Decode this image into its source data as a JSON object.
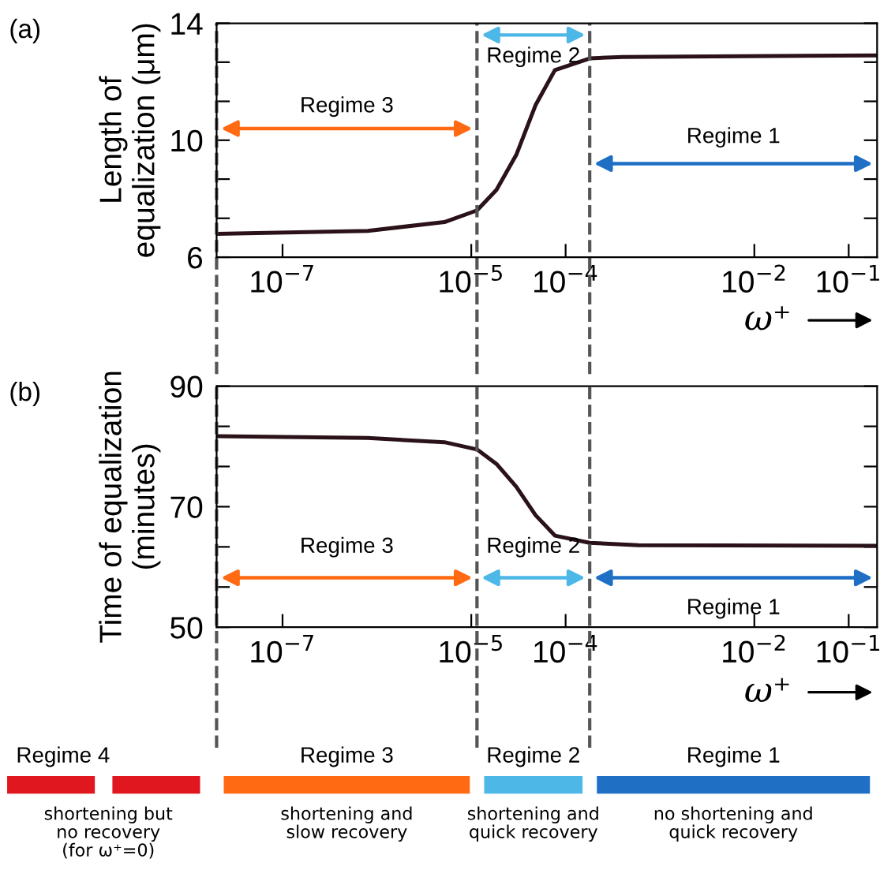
{
  "chart_data": [
    {
      "type": "line",
      "title": "(a)",
      "ylabel": "Length of\nequalization (μm)",
      "xlabel": "ω⁺",
      "log": "x",
      "x": [
        2e-08,
        8e-07,
        5.2e-06,
        1.15e-05,
        1.85e-05,
        3e-05,
        4.8e-05,
        7.7e-05,
        0.00018,
        0.0004,
        0.2
      ],
      "series": [
        {
          "color": "#2a1218",
          "values": [
            6.8,
            6.9,
            7.2,
            7.6,
            8.3,
            9.5,
            11.2,
            12.4,
            12.8,
            12.85,
            12.9
          ]
        }
      ],
      "xlim": [
        2e-08,
        0.2
      ],
      "xticks": [
        {
          "value": 1e-07,
          "label": "10$^{−7}$"
        },
        {
          "value": 1e-05,
          "label": "10$^{−5}$"
        },
        {
          "value": 0.0001,
          "label": "10$^{−4}$"
        },
        {
          "value": 0.01,
          "label": "10$^{−2}$"
        },
        {
          "value": 0.1,
          "label": "10$^{−1}$"
        }
      ],
      "ylim": [
        6,
        14
      ],
      "yticks": [
        6,
        {
          "value": 7.33,
          "label": null
        },
        {
          "value": 8.67,
          "label": null
        },
        10,
        {
          "value": 11.33,
          "label": null
        },
        {
          "value": 12.67,
          "label": null
        },
        14
      ],
      "ref_lines": [
        {
          "axis": "x",
          "value": 2e-08,
          "color": "#555555",
          "line_style": "dashed"
        },
        {
          "axis": "x",
          "value": 1.15e-05,
          "color": "#555555",
          "line_style": "dashed"
        },
        {
          "axis": "x",
          "value": 0.00018,
          "color": "#555555",
          "line_style": "dashed"
        }
      ],
      "annotations": [
        "Regime 3",
        "Regime 2",
        "Regime 1"
      ],
      "grid": false,
      "legend": false,
      "marker": "none",
      "line_style": "solid"
    },
    {
      "type": "line",
      "title": "(b)",
      "ylabel": "Time of equalization\n(minutes)",
      "xlabel": "ω⁺",
      "log": "x",
      "x": [
        2e-08,
        8e-07,
        5.2e-06,
        1.15e-05,
        1.85e-05,
        3e-05,
        4.8e-05,
        7.7e-05,
        0.00018,
        0.00059,
        0.2
      ],
      "series": [
        {
          "color": "#2a1218",
          "values": [
            81.7,
            81.4,
            80.7,
            79.5,
            77.1,
            73.3,
            68.6,
            65.2,
            64.0,
            63.6,
            63.5
          ]
        }
      ],
      "xlim": [
        2e-08,
        0.2
      ],
      "xticks": [
        {
          "value": 1e-07,
          "label": "10$^{−7}$"
        },
        {
          "value": 1e-05,
          "label": "10$^{−5}$"
        },
        {
          "value": 0.0001,
          "label": "10$^{−4}$"
        },
        {
          "value": 0.01,
          "label": "10$^{−2}$"
        },
        {
          "value": 0.1,
          "label": "10$^{−1}$"
        }
      ],
      "ylim": [
        50,
        90
      ],
      "yticks": [
        50,
        {
          "value": 56.67,
          "label": null
        },
        {
          "value": 63.33,
          "label": null
        },
        70,
        {
          "value": 76.67,
          "label": null
        },
        {
          "value": 83.33,
          "label": null
        },
        90
      ],
      "ref_lines": [
        {
          "axis": "x",
          "value": 2e-08,
          "color": "#555555",
          "line_style": "dashed"
        },
        {
          "axis": "x",
          "value": 1.15e-05,
          "color": "#555555",
          "line_style": "dashed"
        },
        {
          "axis": "x",
          "value": 0.00018,
          "color": "#555555",
          "line_style": "dashed"
        }
      ],
      "annotations": [
        "Regime 3",
        "Regime 2",
        "Regime 1"
      ],
      "grid": false,
      "legend": false,
      "marker": "none",
      "line_style": "solid"
    },
    {
      "type": "other",
      "categories": [
        "Regime 4",
        "Regime 3",
        "Regime 2",
        "Regime 1"
      ],
      "colors": [
        "#e0171f",
        "#ff6a13",
        "#4db8e8",
        "#1f6fc5"
      ],
      "annotations": [
        "shortening but\nno recovery\n(for ω⁺=0)",
        "shortening and\nslow recovery",
        "shortening and\nquick recovery",
        "no shortening and\nquick recovery"
      ]
    }
  ]
}
